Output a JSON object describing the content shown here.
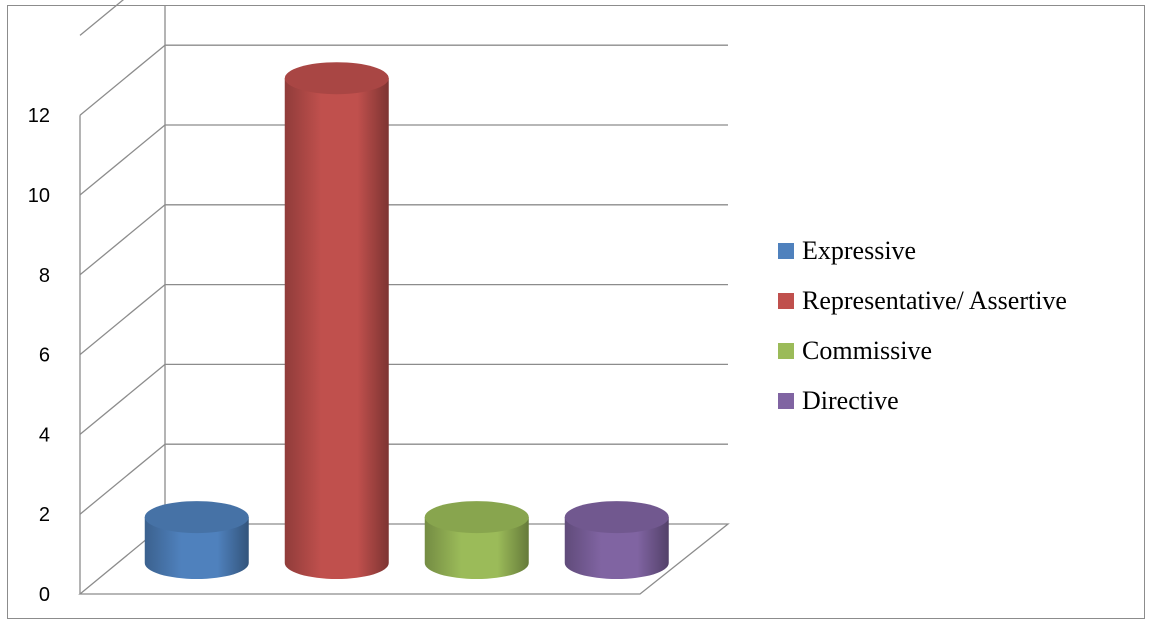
{
  "chart_data": {
    "type": "bar",
    "style": "3d-cylinder",
    "categories": [
      "Expressive",
      "Representative/ Assertive",
      "Commissive",
      "Directive"
    ],
    "values": [
      1,
      12,
      1,
      1
    ],
    "colors": [
      "#4f81bd",
      "#c0504d",
      "#9bbb59",
      "#8064a2"
    ],
    "ylim": [
      0,
      12
    ],
    "yticks": [
      "0",
      "2",
      "4",
      "6",
      "8",
      "10",
      "12"
    ],
    "grid": true,
    "legend_position": "right",
    "title": "",
    "xlabel": "",
    "ylabel": ""
  }
}
